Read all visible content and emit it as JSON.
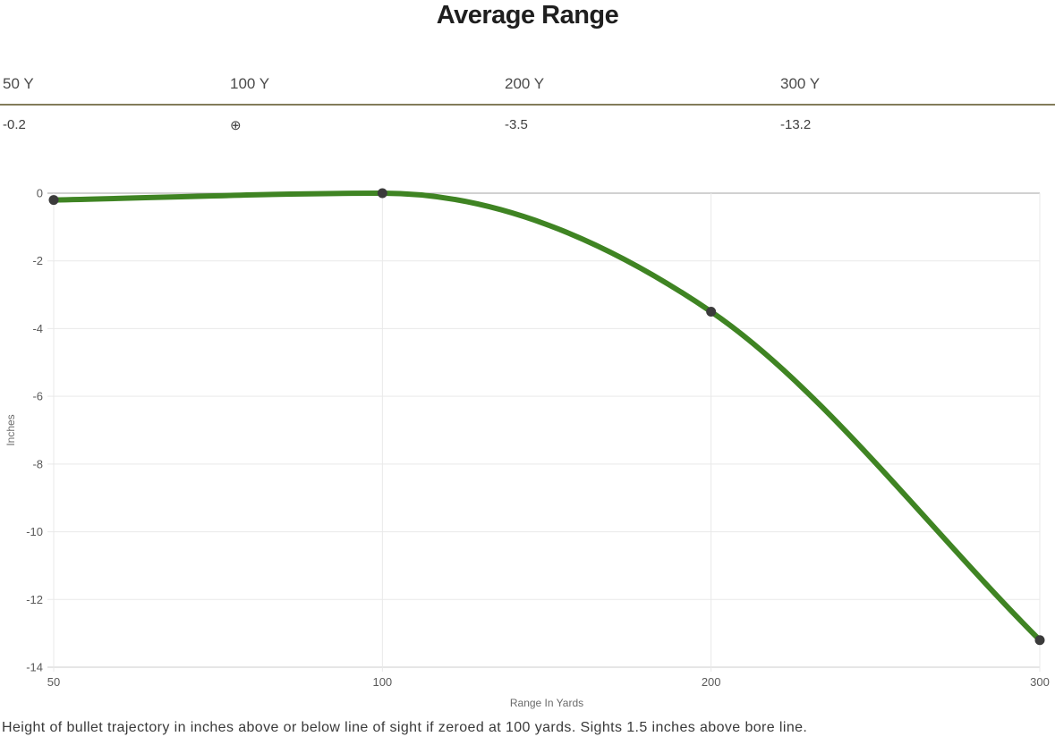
{
  "title": "Average Range",
  "range_table": {
    "columns": [
      {
        "header": "50 Y",
        "value": "-0.2"
      },
      {
        "header": "100 Y",
        "value": "⊕"
      },
      {
        "header": "200 Y",
        "value": "-3.5"
      },
      {
        "header": "300 Y",
        "value": "-13.2"
      }
    ],
    "separator_color": "#827c5a"
  },
  "chart_data": {
    "type": "line",
    "title": "Average Range",
    "categories": [
      "50",
      "100",
      "200",
      "300"
    ],
    "values": [
      -0.2,
      0,
      -3.5,
      -13.2
    ],
    "xlabel": "Range In Yards",
    "ylabel": "Inches",
    "ylim": [
      -14,
      0
    ],
    "y_ticks": [
      0,
      -2,
      -4,
      -6,
      -8,
      -10,
      -12,
      -14
    ],
    "x_axis_spacing": "categorical-equal",
    "grid": true,
    "curve": "monotone",
    "line_color": "#3f8423",
    "line_width": 6,
    "point_color": "#3b3b3b",
    "point_radius": 5.5,
    "legend": "none"
  },
  "footnote": "Height of bullet trajectory in inches above or below line of sight if zeroed at 100 yards. Sights 1.5 inches above bore line."
}
